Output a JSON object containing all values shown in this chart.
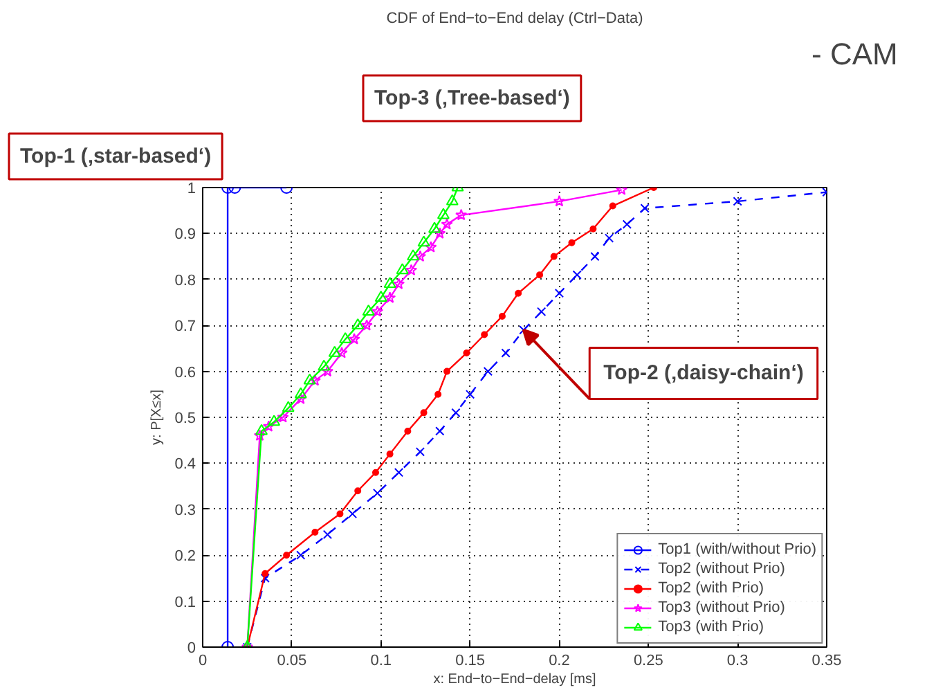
{
  "chart_data": {
    "type": "line",
    "title": "CDF of End−to−End delay (Ctrl−Data)",
    "xlabel": "x: End−to−End−delay [ms]",
    "ylabel": "y: P[X≤x]",
    "xlim": [
      0,
      0.35
    ],
    "ylim": [
      0,
      1
    ],
    "xticks": [
      0,
      0.05,
      0.1,
      0.15,
      0.2,
      0.25,
      0.3,
      0.35
    ],
    "yticks": [
      0,
      0.1,
      0.2,
      0.3,
      0.4,
      0.5,
      0.6,
      0.7,
      0.8,
      0.9,
      1
    ],
    "grid": true,
    "legend": "bottom right",
    "series": [
      {
        "name": "Top1 (with/without Prio)",
        "color": "#0000ff",
        "marker": "circle",
        "line_style": "solid",
        "x": [
          0.014,
          0.014,
          0.018,
          0.047
        ],
        "values": [
          0,
          1,
          1,
          1
        ]
      },
      {
        "name": "Top2 (without Prio)",
        "color": "#0000ff",
        "marker": "cross",
        "line_style": "dashed",
        "x": [
          0.025,
          0.035,
          0.055,
          0.07,
          0.084,
          0.098,
          0.11,
          0.122,
          0.133,
          0.142,
          0.15,
          0.16,
          0.17,
          0.18,
          0.19,
          0.2,
          0.21,
          0.22,
          0.228,
          0.238,
          0.248,
          0.3,
          0.35
        ],
        "values": [
          0,
          0.15,
          0.2,
          0.245,
          0.29,
          0.335,
          0.38,
          0.425,
          0.47,
          0.51,
          0.55,
          0.6,
          0.64,
          0.69,
          0.73,
          0.77,
          0.81,
          0.85,
          0.89,
          0.92,
          0.955,
          0.97,
          0.99
        ]
      },
      {
        "name": "Top2 (with Prio)",
        "color": "#ff0000",
        "marker": "circle",
        "line_style": "solid",
        "x": [
          0.025,
          0.035,
          0.047,
          0.063,
          0.077,
          0.087,
          0.097,
          0.105,
          0.115,
          0.124,
          0.132,
          0.137,
          0.148,
          0.158,
          0.168,
          0.177,
          0.189,
          0.197,
          0.207,
          0.219,
          0.23,
          0.253
        ],
        "values": [
          0,
          0.16,
          0.2,
          0.25,
          0.29,
          0.34,
          0.38,
          0.42,
          0.47,
          0.51,
          0.55,
          0.6,
          0.64,
          0.68,
          0.72,
          0.77,
          0.81,
          0.85,
          0.88,
          0.91,
          0.96,
          1
        ]
      },
      {
        "name": "Top3 (without Prio)",
        "color": "#ff00ff",
        "marker": "star",
        "line_style": "solid",
        "x": [
          0.025,
          0.032,
          0.037,
          0.045,
          0.055,
          0.063,
          0.07,
          0.078,
          0.085,
          0.092,
          0.098,
          0.105,
          0.11,
          0.117,
          0.122,
          0.128,
          0.133,
          0.137,
          0.145,
          0.2,
          0.235
        ],
        "values": [
          0,
          0.46,
          0.48,
          0.5,
          0.54,
          0.58,
          0.6,
          0.64,
          0.67,
          0.7,
          0.73,
          0.76,
          0.79,
          0.82,
          0.85,
          0.87,
          0.9,
          0.92,
          0.94,
          0.97,
          0.995
        ]
      },
      {
        "name": "Top3 (with Prio)",
        "color": "#00ff00",
        "marker": "triangle",
        "line_style": "solid",
        "x": [
          0.025,
          0.033,
          0.04,
          0.048,
          0.055,
          0.06,
          0.068,
          0.074,
          0.08,
          0.087,
          0.093,
          0.1,
          0.105,
          0.112,
          0.118,
          0.124,
          0.13,
          0.135,
          0.14,
          0.143
        ],
        "values": [
          0,
          0.47,
          0.49,
          0.52,
          0.55,
          0.58,
          0.61,
          0.64,
          0.67,
          0.7,
          0.73,
          0.76,
          0.79,
          0.82,
          0.85,
          0.88,
          0.91,
          0.94,
          0.97,
          1
        ]
      }
    ],
    "annotations": [
      "Top-1 (‚star-based‘)",
      "Top-3 (‚Tree-based‘)",
      {
        "text": "Top-2 (‚daisy-chain‘)",
        "x": 0.18,
        "y": 0.69
      },
      "- CAM"
    ]
  }
}
